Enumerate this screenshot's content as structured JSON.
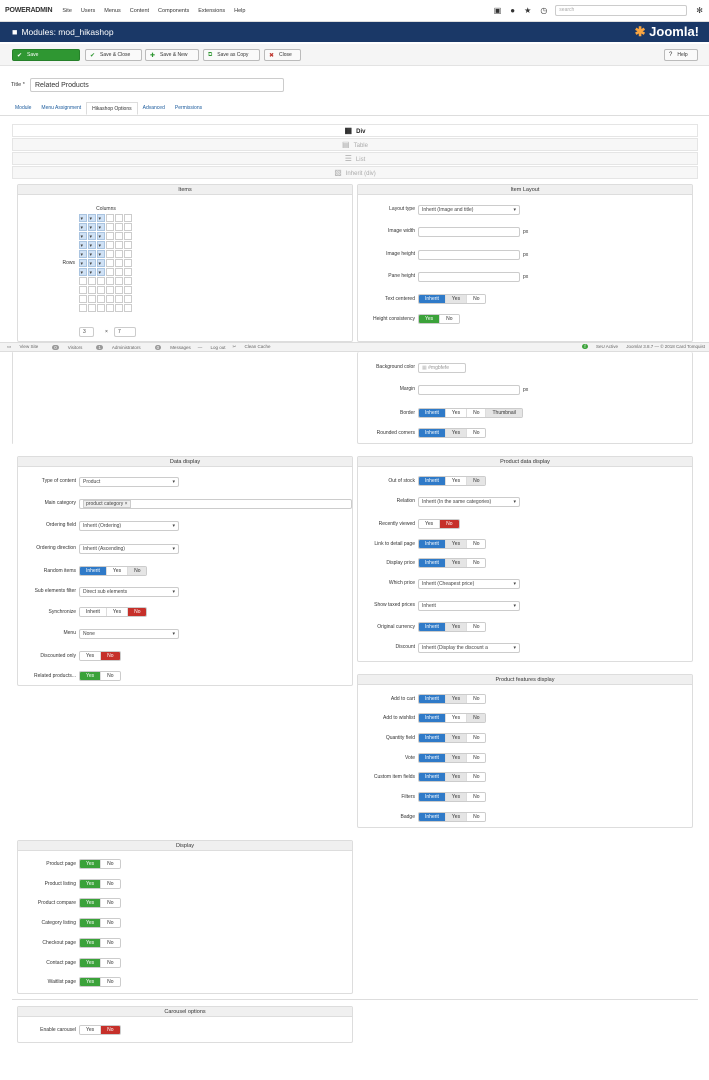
{
  "topbar": {
    "logo_a": "POWER",
    "logo_b": "ADMIN",
    "menu": [
      "Site",
      "Users",
      "Menus",
      "Content",
      "Components",
      "Extensions",
      "Help"
    ],
    "search_placeholder": "search"
  },
  "titlebar": {
    "title": "Modules: mod_hikashop",
    "brand": "Joomla!"
  },
  "toolbar": {
    "save": "Save",
    "save_close": "Save & Close",
    "save_new": "Save & New",
    "save_copy": "Save as Copy",
    "close": "Close",
    "help": "Help"
  },
  "form": {
    "title_label": "Title *",
    "title_value": "Related Products",
    "tabs": [
      "Module",
      "Menu Assignment",
      "Hikashop Options",
      "Advanced",
      "Permissions"
    ]
  },
  "layout_options": [
    "Div",
    "Table",
    "List",
    "Inherit (div)"
  ],
  "items": {
    "header": "Items",
    "columns_label": "Columns",
    "rows_label": "Rows",
    "columns_value": "3",
    "rows_value": "7",
    "times": "×"
  },
  "item_layout": {
    "header": "Item Layout",
    "layout_type_label": "Layout type",
    "layout_type_value": "Inherit (Image and title)",
    "image_width_label": "Image width",
    "image_height_label": "Image height",
    "pane_height_label": "Pane height",
    "px": "px",
    "text_centered_label": "Text centered",
    "height_consistency_label": "Height consistency",
    "background_color_label": "Background color",
    "background_color_value": "#mgbfefe",
    "margin_label": "Margin",
    "border_label": "Border",
    "rounded_corners_label": "Rounded corners"
  },
  "options": {
    "inherit": "Inherit",
    "yes": "Yes",
    "no": "No",
    "thumbnail": "Thumbnail"
  },
  "status": {
    "view_site": "View Site",
    "visitors": "Visitors",
    "visitors_count": "0",
    "admins": "Administrators",
    "admins_count": "1",
    "messages": "Messages",
    "messages_count": "0",
    "logout": "Log out",
    "clean_cache": "Clean Cache",
    "sef": "SeU Active",
    "version": "Joomla! 3.8.7 — © 2018 Card Tomquist"
  },
  "data_display": {
    "header": "Data display",
    "type_label": "Type of content",
    "type_value": "Product",
    "main_category_label": "Main category",
    "main_category_value": "product category ×",
    "ordering_field_label": "Ordering field",
    "ordering_field_value": "Inherit (Ordering)",
    "ordering_direction_label": "Ordering direction",
    "ordering_direction_value": "Inherit (Ascending)",
    "random_label": "Random items",
    "sub_filter_label": "Sub elements filter",
    "sub_filter_value": "Direct sub elements",
    "synchronize_label": "Synchronize",
    "menu_label": "Menu",
    "menu_value": "None",
    "discounted_label": "Discounted only",
    "related_label": "Related products..."
  },
  "product_data": {
    "header": "Product data display",
    "out_of_stock_label": "Out of stock",
    "relation_label": "Relation",
    "relation_value": "Inherit (In the same categories)",
    "recently_viewed_label": "Recently viewed",
    "link_detail_label": "Link to detail page",
    "display_price_label": "Display price",
    "which_price_label": "Which price",
    "which_price_value": "Inherit (Cheapest price)",
    "taxed_label": "Show taxed prices",
    "taxed_value": "Inherit",
    "original_currency_label": "Original currency",
    "discount_label": "Discount",
    "discount_value": "Inherit (Display the discount a"
  },
  "features": {
    "header": "Product features display",
    "add_to_cart": "Add to cart",
    "add_to_wishlist": "Add to wishlist",
    "quantity": "Quantity field",
    "vote": "Vote",
    "custom_fields": "Custom item fields",
    "filters": "Filters",
    "badge": "Badge"
  },
  "display": {
    "header": "Display",
    "product_page": "Product page",
    "product_listing": "Product listing",
    "product_compare": "Product compare",
    "category_listing": "Category listing",
    "checkout_page": "Checkout page",
    "contact_page": "Contact page",
    "waitlist_page": "Waitlist page"
  },
  "carousel": {
    "header": "Carousel options",
    "enable_label": "Enable carousel"
  }
}
